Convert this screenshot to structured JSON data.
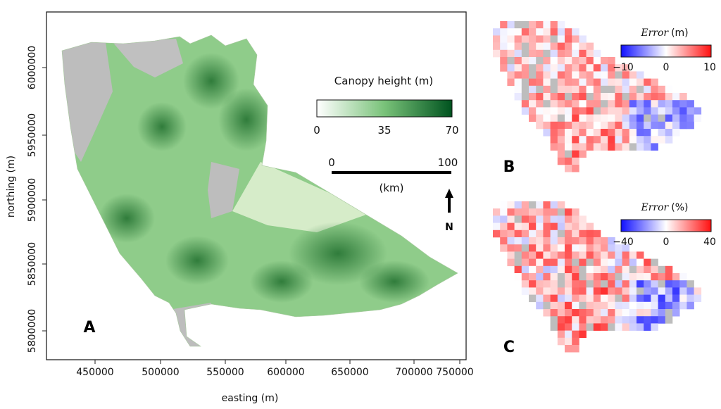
{
  "panel_a": {
    "label": "A",
    "x_axis": {
      "label": "easting (m)",
      "ticks": [
        "450000",
        "500000",
        "550000",
        "600000",
        "650000",
        "700000",
        "750000"
      ]
    },
    "y_axis": {
      "label": "northing (m)",
      "ticks": [
        "6000000",
        "5950000",
        "5900000",
        "5850000",
        "5800000"
      ]
    },
    "colorbar": {
      "title": "Canopy height (m)",
      "ticks": [
        "0",
        "35",
        "70"
      ],
      "colors": [
        "#ffffff",
        "#79c279",
        "#00531f"
      ]
    },
    "scalebar": {
      "start": "0",
      "end": "100",
      "unit": "(km)"
    },
    "north_arrow": {
      "label": "N"
    },
    "nodata_color": "#bdbdbd"
  },
  "panel_b": {
    "label": "B",
    "colorbar": {
      "title_italic": "Error",
      "title_unit": "(m)",
      "ticks": [
        "−10",
        "0",
        "10"
      ],
      "colors": [
        "#0000ff",
        "#ffffff",
        "#ff0000"
      ]
    }
  },
  "panel_c": {
    "label": "C",
    "colorbar": {
      "title_italic": "Error",
      "title_unit": "(%)",
      "ticks": [
        "−40",
        "0",
        "40"
      ],
      "colors": [
        "#0000ff",
        "#ffffff",
        "#ff0000"
      ]
    }
  }
}
